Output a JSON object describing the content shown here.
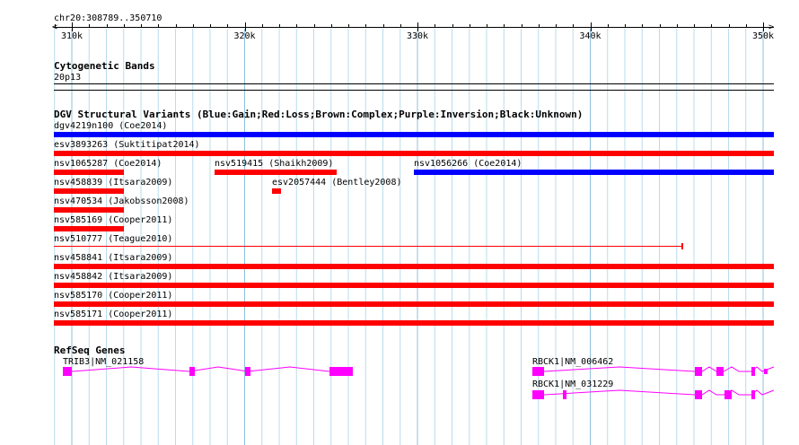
{
  "location": "chr20:308789..350710",
  "ruler_ticks": [
    "310k",
    "320k",
    "330k",
    "340k",
    "350k"
  ],
  "colors": {
    "gain": "#0000ff",
    "loss": "#ff0000",
    "gene": "#ff00ff",
    "grid": "#b9dced"
  },
  "cytoband": {
    "title": "Cytogenetic Bands",
    "band": "20p13"
  },
  "dgv": {
    "title": "DGV Structural Variants (Blue:Gain;Red:Loss;Brown:Complex;Purple:Inversion;Black:Unknown)",
    "variants": [
      {
        "label": "dgv4219n100 (Coe2014)",
        "type": "gain"
      },
      {
        "label": "esv3893263 (Suktitipat2014)",
        "type": "loss"
      },
      {
        "label": "nsv1065287 (Coe2014)",
        "type": "loss"
      },
      {
        "label": "nsv519415 (Shaikh2009)",
        "type": "loss"
      },
      {
        "label": "nsv1056266 (Coe2014)",
        "type": "gain"
      },
      {
        "label": "nsv458839 (Itsara2009)",
        "type": "loss"
      },
      {
        "label": "esv2057444 (Bentley2008)",
        "type": "loss"
      },
      {
        "label": "nsv470534 (Jakobsson2008)",
        "type": "loss"
      },
      {
        "label": "nsv585169 (Cooper2011)",
        "type": "loss"
      },
      {
        "label": "nsv510777 (Teague2010)",
        "type": "loss"
      },
      {
        "label": "nsv458841 (Itsara2009)",
        "type": "loss"
      },
      {
        "label": "nsv458842 (Itsara2009)",
        "type": "loss"
      },
      {
        "label": "nsv585170 (Cooper2011)",
        "type": "loss"
      },
      {
        "label": "nsv585171 (Cooper2011)",
        "type": "loss"
      }
    ]
  },
  "refseq": {
    "title": "RefSeq Genes",
    "genes": [
      {
        "label": "TRIB3|NM_021158"
      },
      {
        "label": "RBCK1|NM_006462"
      },
      {
        "label": "RBCK1|NM_031229"
      }
    ]
  }
}
